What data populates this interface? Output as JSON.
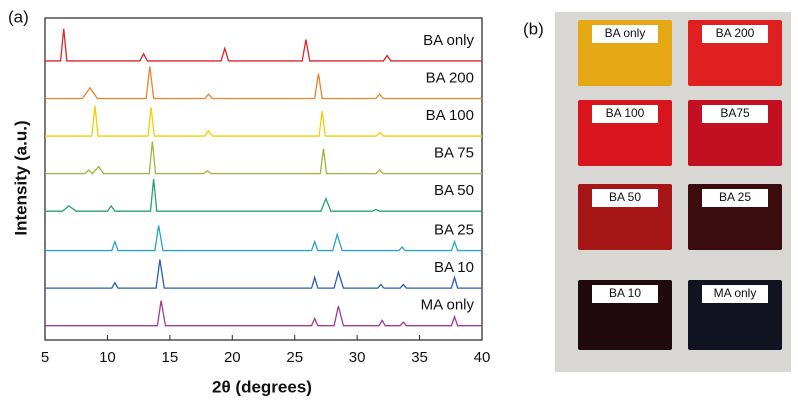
{
  "chart_data": {
    "type": "line",
    "panel_label": "(a)",
    "xlabel": "2θ (degrees)",
    "ylabel": "Intensity (a.u.)",
    "xlim": [
      5,
      40
    ],
    "ylim": [
      0,
      9
    ],
    "xticks": [
      5,
      10,
      15,
      20,
      25,
      30,
      35,
      40
    ],
    "series": [
      {
        "name": "BA only",
        "color": "#d9262b",
        "x": [
          5,
          6.25,
          6.5,
          6.75,
          12.6,
          12.9,
          13.2,
          19.1,
          19.4,
          19.7,
          25.6,
          25.9,
          26.2,
          32.1,
          32.4,
          32.7,
          40
        ],
        "values": [
          7.8,
          7.8,
          8.7,
          7.8,
          7.8,
          8.0,
          7.8,
          7.8,
          8.15,
          7.8,
          7.8,
          8.4,
          7.8,
          7.8,
          7.95,
          7.8,
          7.8
        ]
      },
      {
        "name": "BA 200",
        "color": "#e8842c",
        "x": [
          5,
          8.0,
          8.6,
          9.2,
          13.1,
          13.4,
          13.7,
          17.8,
          18.1,
          18.4,
          26.6,
          26.9,
          27.2,
          31.5,
          31.8,
          32.1,
          40
        ],
        "values": [
          6.75,
          6.75,
          7.05,
          6.75,
          6.75,
          7.65,
          6.75,
          6.75,
          6.87,
          6.75,
          6.75,
          7.45,
          6.75,
          6.75,
          6.87,
          6.75,
          6.75
        ]
      },
      {
        "name": "BA 100",
        "color": "#f2cf00",
        "x": [
          5,
          8.75,
          9.0,
          9.25,
          13.25,
          13.5,
          13.75,
          17.8,
          18.1,
          18.4,
          26.95,
          27.2,
          27.45,
          31.5,
          31.8,
          32.1,
          40
        ],
        "values": [
          5.7,
          5.7,
          6.55,
          5.7,
          5.7,
          6.5,
          5.7,
          5.7,
          5.85,
          5.7,
          5.7,
          6.4,
          5.7,
          5.7,
          5.8,
          5.7,
          5.7
        ]
      },
      {
        "name": "BA 75",
        "color": "#9bb83a",
        "x": [
          5,
          8.2,
          8.5,
          8.8,
          9.3,
          9.7,
          13.35,
          13.6,
          13.85,
          17.7,
          18.0,
          18.3,
          27.05,
          27.3,
          27.55,
          31.5,
          31.8,
          32.1,
          40
        ],
        "values": [
          4.65,
          4.65,
          4.75,
          4.65,
          4.85,
          4.65,
          4.65,
          5.55,
          4.65,
          4.65,
          4.73,
          4.65,
          4.65,
          5.35,
          4.65,
          4.65,
          4.75,
          4.65,
          4.65
        ]
      },
      {
        "name": "BA 50",
        "color": "#27a36a",
        "x": [
          5,
          6.4,
          6.9,
          7.5,
          10.0,
          10.3,
          10.6,
          13.45,
          13.7,
          13.95,
          27.1,
          27.5,
          27.9,
          31.2,
          31.5,
          31.8,
          40
        ],
        "values": [
          3.6,
          3.6,
          3.75,
          3.6,
          3.6,
          3.75,
          3.6,
          3.6,
          4.5,
          3.6,
          3.6,
          3.95,
          3.6,
          3.6,
          3.65,
          3.6,
          3.6
        ]
      },
      {
        "name": "BA 25",
        "color": "#2aa3c8",
        "x": [
          5,
          10.35,
          10.6,
          10.85,
          13.8,
          14.1,
          14.45,
          26.35,
          26.6,
          26.85,
          28.05,
          28.4,
          28.8,
          33.35,
          33.6,
          33.85,
          37.55,
          37.8,
          38.05,
          40
        ],
        "values": [
          2.5,
          2.5,
          2.75,
          2.5,
          2.5,
          3.2,
          2.5,
          2.5,
          2.75,
          2.5,
          2.5,
          2.95,
          2.5,
          2.5,
          2.6,
          2.5,
          2.5,
          2.75,
          2.5,
          2.5
        ]
      },
      {
        "name": "BA 10",
        "color": "#2a5db8",
        "x": [
          5,
          10.35,
          10.6,
          10.85,
          13.9,
          14.2,
          14.55,
          26.35,
          26.6,
          26.85,
          28.15,
          28.5,
          28.9,
          31.65,
          31.9,
          32.15,
          33.45,
          33.7,
          33.95,
          37.55,
          37.8,
          38.05,
          40
        ],
        "values": [
          1.45,
          1.45,
          1.6,
          1.45,
          1.45,
          2.25,
          1.45,
          1.45,
          1.75,
          1.45,
          1.45,
          1.9,
          1.45,
          1.45,
          1.55,
          1.45,
          1.45,
          1.55,
          1.45,
          1.45,
          1.75,
          1.45,
          1.45
        ]
      },
      {
        "name": "MA only",
        "color": "#a23a98",
        "x": [
          5,
          14.0,
          14.3,
          14.65,
          26.35,
          26.6,
          26.85,
          28.15,
          28.5,
          28.9,
          31.75,
          32.0,
          32.25,
          33.45,
          33.7,
          33.95,
          37.55,
          37.8,
          38.05,
          40
        ],
        "values": [
          0.4,
          0.4,
          1.1,
          0.4,
          0.4,
          0.6,
          0.4,
          0.4,
          0.95,
          0.4,
          0.4,
          0.55,
          0.4,
          0.4,
          0.5,
          0.4,
          0.4,
          0.65,
          0.4,
          0.4
        ]
      }
    ]
  },
  "photo": {
    "panel_label": "(b)",
    "samples": [
      {
        "label": "BA only",
        "color": "#e7a816"
      },
      {
        "label": "BA 200",
        "color": "#e02020"
      },
      {
        "label": "BA 100",
        "color": "#d8141c"
      },
      {
        "label": "BA75",
        "color": "#c21020"
      },
      {
        "label": "BA 50",
        "color": "#a61616"
      },
      {
        "label": "BA 25",
        "color": "#3a0c10"
      },
      {
        "label": "BA 10",
        "color": "#200a0e"
      },
      {
        "label": "MA only",
        "color": "#111320"
      }
    ]
  }
}
